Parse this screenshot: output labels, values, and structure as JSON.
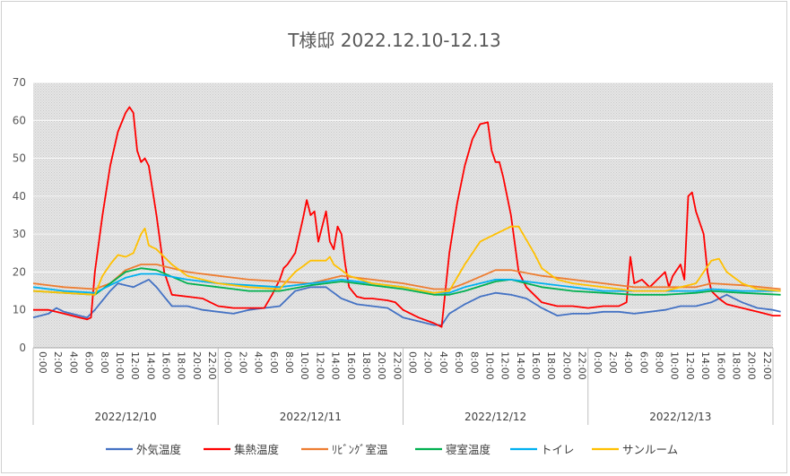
{
  "chart_data": {
    "type": "line",
    "title": "T様邸 2022.12.10-12.13",
    "xlabel": "",
    "ylabel": "",
    "ylim": [
      0,
      70
    ],
    "yticks": [
      0,
      10,
      20,
      30,
      40,
      50,
      60,
      70
    ],
    "grid": true,
    "legend_position": "bottom",
    "days": [
      "2022/12/10",
      "2022/12/11",
      "2022/12/12",
      "2022/12/13"
    ],
    "hour_labels": [
      "0:00",
      "2:00",
      "4:00",
      "6:00",
      "8:00",
      "10:00",
      "12:00",
      "14:00",
      "16:00",
      "18:00",
      "20:00",
      "22:00"
    ],
    "series": [
      {
        "name": "外気温度",
        "color": "#4472C4",
        "points": [
          [
            0,
            8
          ],
          [
            2,
            9
          ],
          [
            3,
            10.5
          ],
          [
            4,
            9.5
          ],
          [
            6,
            8.5
          ],
          [
            7,
            8
          ],
          [
            8,
            10
          ],
          [
            10,
            15
          ],
          [
            11,
            17
          ],
          [
            12,
            16.5
          ],
          [
            13,
            16
          ],
          [
            14,
            17
          ],
          [
            15,
            18
          ],
          [
            16,
            16
          ],
          [
            18,
            11
          ],
          [
            20,
            11
          ],
          [
            22,
            10
          ],
          [
            24,
            9.5
          ],
          [
            26,
            9
          ],
          [
            28,
            10
          ],
          [
            30,
            10.5
          ],
          [
            32,
            11
          ],
          [
            34,
            15
          ],
          [
            36,
            16
          ],
          [
            38,
            16
          ],
          [
            40,
            13
          ],
          [
            42,
            11.5
          ],
          [
            44,
            11
          ],
          [
            46,
            10.5
          ],
          [
            48,
            8
          ],
          [
            50,
            7
          ],
          [
            52,
            6
          ],
          [
            53,
            6
          ],
          [
            54,
            9
          ],
          [
            56,
            11.5
          ],
          [
            58,
            13.5
          ],
          [
            60,
            14.5
          ],
          [
            62,
            14
          ],
          [
            64,
            13
          ],
          [
            66,
            10.5
          ],
          [
            68,
            8.5
          ],
          [
            70,
            9
          ],
          [
            72,
            9
          ],
          [
            74,
            9.5
          ],
          [
            76,
            9.5
          ],
          [
            78,
            9
          ],
          [
            80,
            9.5
          ],
          [
            82,
            10
          ],
          [
            84,
            11
          ],
          [
            86,
            11
          ],
          [
            88,
            12
          ],
          [
            90,
            14
          ],
          [
            92,
            12
          ],
          [
            94,
            10.5
          ],
          [
            96,
            10
          ],
          [
            97,
            9.5
          ]
        ]
      },
      {
        "name": "集熱温度",
        "color": "#FF0000",
        "points": [
          [
            0,
            10
          ],
          [
            2,
            10
          ],
          [
            4,
            9
          ],
          [
            6,
            8
          ],
          [
            7,
            7.5
          ],
          [
            7.5,
            8
          ],
          [
            8,
            20
          ],
          [
            9,
            35
          ],
          [
            10,
            48
          ],
          [
            11,
            57
          ],
          [
            12,
            62
          ],
          [
            12.5,
            63.5
          ],
          [
            13,
            62
          ],
          [
            13.5,
            52
          ],
          [
            14,
            49
          ],
          [
            14.5,
            50
          ],
          [
            15,
            48
          ],
          [
            16,
            35
          ],
          [
            17,
            20
          ],
          [
            18,
            14
          ],
          [
            20,
            13.5
          ],
          [
            22,
            13
          ],
          [
            23,
            12
          ],
          [
            24,
            11
          ],
          [
            26,
            10.5
          ],
          [
            28,
            10.5
          ],
          [
            30,
            10.5
          ],
          [
            31,
            14
          ],
          [
            32,
            18
          ],
          [
            32.5,
            21
          ],
          [
            33,
            22
          ],
          [
            34,
            25
          ],
          [
            35,
            34
          ],
          [
            35.5,
            39
          ],
          [
            36,
            35
          ],
          [
            36.5,
            36
          ],
          [
            37,
            28
          ],
          [
            38,
            36
          ],
          [
            38.5,
            28
          ],
          [
            39,
            26
          ],
          [
            39.5,
            32
          ],
          [
            40,
            30
          ],
          [
            40.5,
            22
          ],
          [
            41,
            16
          ],
          [
            42,
            13.5
          ],
          [
            43,
            13
          ],
          [
            44,
            13
          ],
          [
            46,
            12.5
          ],
          [
            47,
            12
          ],
          [
            48,
            10
          ],
          [
            50,
            8
          ],
          [
            52,
            6.5
          ],
          [
            53,
            5.5
          ],
          [
            54,
            25
          ],
          [
            55,
            38
          ],
          [
            56,
            48
          ],
          [
            57,
            55
          ],
          [
            58,
            59
          ],
          [
            59,
            59.5
          ],
          [
            59.5,
            52
          ],
          [
            60,
            49
          ],
          [
            60.5,
            49
          ],
          [
            61,
            45
          ],
          [
            62,
            35
          ],
          [
            63,
            20
          ],
          [
            64,
            16
          ],
          [
            66,
            12
          ],
          [
            68,
            11
          ],
          [
            70,
            11
          ],
          [
            72,
            10.5
          ],
          [
            74,
            11
          ],
          [
            76,
            11
          ],
          [
            77,
            12
          ],
          [
            77.5,
            24
          ],
          [
            78,
            17
          ],
          [
            79,
            18
          ],
          [
            80,
            16
          ],
          [
            81,
            18
          ],
          [
            82,
            20
          ],
          [
            82.5,
            16
          ],
          [
            83,
            19
          ],
          [
            84,
            22
          ],
          [
            84.5,
            18
          ],
          [
            85,
            40
          ],
          [
            85.5,
            41
          ],
          [
            86,
            36
          ],
          [
            87,
            30
          ],
          [
            87.5,
            20
          ],
          [
            88,
            15
          ],
          [
            89,
            13
          ],
          [
            90,
            11.5
          ],
          [
            92,
            10.5
          ],
          [
            94,
            9.5
          ],
          [
            96,
            8.5
          ],
          [
            97,
            8.5
          ]
        ]
      },
      {
        "name": "ﾘﾋﾞﾝｸﾞ室温",
        "color": "#ED7D31",
        "points": [
          [
            0,
            17
          ],
          [
            4,
            16
          ],
          [
            8,
            15.5
          ],
          [
            10,
            17
          ],
          [
            12,
            20.5
          ],
          [
            14,
            22
          ],
          [
            16,
            22
          ],
          [
            20,
            20
          ],
          [
            24,
            19
          ],
          [
            28,
            18
          ],
          [
            32,
            17.5
          ],
          [
            36,
            17
          ],
          [
            40,
            19
          ],
          [
            44,
            18
          ],
          [
            48,
            17
          ],
          [
            52,
            15.5
          ],
          [
            54,
            15.5
          ],
          [
            56,
            17
          ],
          [
            60,
            20.5
          ],
          [
            62,
            20.5
          ],
          [
            66,
            19
          ],
          [
            70,
            18
          ],
          [
            74,
            17
          ],
          [
            78,
            16
          ],
          [
            82,
            16
          ],
          [
            86,
            16
          ],
          [
            88,
            17
          ],
          [
            92,
            16.5
          ],
          [
            97,
            15.5
          ]
        ]
      },
      {
        "name": "寝室温度",
        "color": "#00B050",
        "points": [
          [
            0,
            15
          ],
          [
            4,
            14.5
          ],
          [
            8,
            14
          ],
          [
            10,
            17
          ],
          [
            12,
            20
          ],
          [
            14,
            21
          ],
          [
            16,
            20.5
          ],
          [
            20,
            17
          ],
          [
            24,
            16
          ],
          [
            28,
            15
          ],
          [
            32,
            15
          ],
          [
            36,
            16.5
          ],
          [
            40,
            17.5
          ],
          [
            44,
            16.5
          ],
          [
            48,
            15.5
          ],
          [
            52,
            14
          ],
          [
            54,
            14
          ],
          [
            56,
            15
          ],
          [
            60,
            17.5
          ],
          [
            62,
            18
          ],
          [
            66,
            16
          ],
          [
            70,
            15
          ],
          [
            74,
            14.5
          ],
          [
            78,
            14
          ],
          [
            82,
            14
          ],
          [
            86,
            14.5
          ],
          [
            88,
            15
          ],
          [
            92,
            14.5
          ],
          [
            97,
            14
          ]
        ]
      },
      {
        "name": "トイレ",
        "color": "#00B0F0",
        "points": [
          [
            0,
            16
          ],
          [
            4,
            15
          ],
          [
            8,
            14.5
          ],
          [
            10,
            16.5
          ],
          [
            12,
            18.5
          ],
          [
            14,
            19.5
          ],
          [
            16,
            19.5
          ],
          [
            20,
            18
          ],
          [
            24,
            17
          ],
          [
            28,
            16.5
          ],
          [
            32,
            16
          ],
          [
            36,
            17
          ],
          [
            40,
            18
          ],
          [
            44,
            17
          ],
          [
            48,
            16
          ],
          [
            52,
            14.5
          ],
          [
            54,
            14.5
          ],
          [
            56,
            16
          ],
          [
            60,
            18
          ],
          [
            62,
            18
          ],
          [
            66,
            17
          ],
          [
            70,
            16
          ],
          [
            74,
            15
          ],
          [
            78,
            15
          ],
          [
            82,
            15
          ],
          [
            86,
            15
          ],
          [
            88,
            15.5
          ],
          [
            92,
            15
          ],
          [
            97,
            15
          ]
        ]
      },
      {
        "name": "サンルーム",
        "color": "#FFC000",
        "points": [
          [
            0,
            15
          ],
          [
            4,
            14.5
          ],
          [
            8,
            14
          ],
          [
            9,
            19
          ],
          [
            10,
            22
          ],
          [
            11,
            24.5
          ],
          [
            12,
            24
          ],
          [
            13,
            25
          ],
          [
            14,
            30
          ],
          [
            14.5,
            31.5
          ],
          [
            15,
            27
          ],
          [
            16,
            26
          ],
          [
            18,
            22
          ],
          [
            20,
            19
          ],
          [
            24,
            17
          ],
          [
            28,
            16
          ],
          [
            32,
            15.5
          ],
          [
            34,
            20
          ],
          [
            36,
            23
          ],
          [
            38,
            23
          ],
          [
            38.5,
            24
          ],
          [
            39,
            22
          ],
          [
            41,
            19
          ],
          [
            44,
            17
          ],
          [
            48,
            16
          ],
          [
            52,
            14.5
          ],
          [
            54,
            15
          ],
          [
            56,
            22
          ],
          [
            58,
            28
          ],
          [
            60,
            30
          ],
          [
            62,
            32
          ],
          [
            63,
            32
          ],
          [
            65,
            25
          ],
          [
            66,
            21
          ],
          [
            68,
            18
          ],
          [
            70,
            17
          ],
          [
            74,
            16
          ],
          [
            78,
            15
          ],
          [
            82,
            15
          ],
          [
            86,
            17
          ],
          [
            88,
            23
          ],
          [
            89,
            23.5
          ],
          [
            90,
            20
          ],
          [
            92,
            17
          ],
          [
            94,
            15.5
          ],
          [
            97,
            15
          ]
        ]
      }
    ]
  }
}
